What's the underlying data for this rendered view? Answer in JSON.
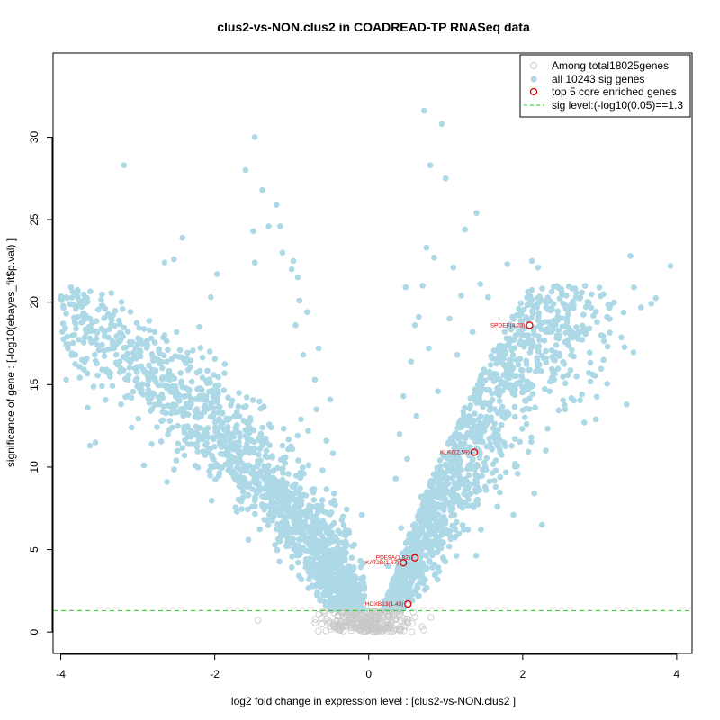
{
  "chart_data": {
    "type": "scatter",
    "title": "clus2-vs-NON.clus2 in COADREAD-TP RNASeq data",
    "xlabel": "log2 fold change in expression level : [clus2-vs-NON.clus2 ]",
    "ylabel": "significance of gene : [-log10(ebayes_fit$p.val) ]",
    "xlim": [
      -4.1,
      4.2
    ],
    "ylim": [
      -1.3,
      35.1
    ],
    "x_ticks": [
      -4,
      -2,
      0,
      2,
      4
    ],
    "x_tick_labels": [
      "-4",
      "-2",
      "0",
      "2",
      "4"
    ],
    "y_ticks": [
      0,
      5,
      10,
      15,
      20,
      25,
      30
    ],
    "y_tick_labels": [
      "0",
      "5",
      "10",
      "15",
      "20",
      "25",
      "30"
    ],
    "sig_level": 1.3,
    "legend": {
      "placement": "top-right",
      "entries": [
        {
          "label": "Among total18025genes",
          "marker": "open-circle",
          "color": "#c8c8c8"
        },
        {
          "label": "all 10243 sig genes",
          "marker": "filled-circle",
          "color": "#add8e6"
        },
        {
          "label": "top 5 core enriched genes",
          "marker": "open-circle",
          "color": "#e00000"
        },
        {
          "label": "sig level:(-log10(0.05)==1.3",
          "marker": "dashed-line",
          "color": "#22cc22"
        }
      ]
    },
    "series": [
      {
        "name": "all 10243 sig genes",
        "color": "#add8e6",
        "points": [
          [
            -3.65,
            13.6
          ],
          [
            -3.62,
            11.3
          ],
          [
            -3.55,
            11.5
          ],
          [
            -3.18,
            28.3
          ],
          [
            -3.08,
            12.4
          ],
          [
            -2.92,
            10.1
          ],
          [
            -2.85,
            13.9
          ],
          [
            -2.82,
            11.4
          ],
          [
            -2.78,
            18.2
          ],
          [
            -2.65,
            22.4
          ],
          [
            -2.65,
            18.0
          ],
          [
            -2.62,
            9.1
          ],
          [
            -2.58,
            15.3
          ],
          [
            -2.55,
            14.9
          ],
          [
            -2.53,
            22.6
          ],
          [
            -2.5,
            10.4
          ],
          [
            -2.45,
            17.1
          ],
          [
            -2.42,
            23.9
          ],
          [
            -2.38,
            14.3
          ],
          [
            -2.22,
            12.0
          ],
          [
            -2.2,
            18.5
          ],
          [
            -2.05,
            20.3
          ],
          [
            -1.97,
            21.7
          ],
          [
            -1.6,
            28.0
          ],
          [
            -1.5,
            24.3
          ],
          [
            -1.48,
            22.4
          ],
          [
            -1.48,
            30.0
          ],
          [
            -1.38,
            26.8
          ],
          [
            -1.3,
            24.6
          ],
          [
            -1.2,
            25.9
          ],
          [
            -1.15,
            24.6
          ],
          [
            -1.12,
            23.0
          ],
          [
            -1.0,
            22.0
          ],
          [
            -0.98,
            22.5
          ],
          [
            -0.95,
            18.6
          ],
          [
            -0.92,
            21.5
          ],
          [
            -0.9,
            20.1
          ],
          [
            -0.88,
            12.9
          ],
          [
            -0.85,
            16.8
          ],
          [
            -0.82,
            7.3
          ],
          [
            -0.8,
            19.4
          ],
          [
            -0.78,
            10.1
          ],
          [
            -0.75,
            5.4
          ],
          [
            -0.7,
            15.3
          ],
          [
            -0.68,
            13.5
          ],
          [
            -0.65,
            17.2
          ],
          [
            -0.6,
            9.8
          ],
          [
            -0.58,
            4.1
          ],
          [
            -0.55,
            11.6
          ],
          [
            -0.52,
            6.2
          ],
          [
            -0.5,
            14.1
          ],
          [
            -0.45,
            8.4
          ],
          [
            -0.4,
            3.2
          ],
          [
            -0.35,
            6.8
          ],
          [
            -0.3,
            2.6
          ],
          [
            -0.25,
            2.0
          ],
          [
            -0.22,
            4.5
          ],
          [
            -0.18,
            1.8
          ],
          [
            0.2,
            1.9
          ],
          [
            0.25,
            4.0
          ],
          [
            0.3,
            2.5
          ],
          [
            0.35,
            9.3
          ],
          [
            0.38,
            3.4
          ],
          [
            0.4,
            12.0
          ],
          [
            0.42,
            6.3
          ],
          [
            0.45,
            14.3
          ],
          [
            0.48,
            20.9
          ],
          [
            0.5,
            10.5
          ],
          [
            0.55,
            16.4
          ],
          [
            0.58,
            5.1
          ],
          [
            0.6,
            18.6
          ],
          [
            0.62,
            13.1
          ],
          [
            0.65,
            19.1
          ],
          [
            0.68,
            8.2
          ],
          [
            0.7,
            21.0
          ],
          [
            0.72,
            31.6
          ],
          [
            0.75,
            23.3
          ],
          [
            0.78,
            17.2
          ],
          [
            0.8,
            28.3
          ],
          [
            0.85,
            22.7
          ],
          [
            0.9,
            14.6
          ],
          [
            0.95,
            30.8
          ],
          [
            1.0,
            27.5
          ],
          [
            1.05,
            19.0
          ],
          [
            1.1,
            22.1
          ],
          [
            1.15,
            16.8
          ],
          [
            1.18,
            11.2
          ],
          [
            1.2,
            20.4
          ],
          [
            1.25,
            24.4
          ],
          [
            1.3,
            9.5
          ],
          [
            1.35,
            18.2
          ],
          [
            1.4,
            25.4
          ],
          [
            1.42,
            15.0
          ],
          [
            1.45,
            21.1
          ],
          [
            1.5,
            12.2
          ],
          [
            1.55,
            20.3
          ],
          [
            1.6,
            16.6
          ],
          [
            1.65,
            8.8
          ],
          [
            1.7,
            14.0
          ],
          [
            1.75,
            11.5
          ],
          [
            1.8,
            22.3
          ],
          [
            1.82,
            13.2
          ],
          [
            1.88,
            7.1
          ],
          [
            1.9,
            10.2
          ],
          [
            1.95,
            19.6
          ],
          [
            2.0,
            15.3
          ],
          [
            2.05,
            12.6
          ],
          [
            2.12,
            22.5
          ],
          [
            2.15,
            8.4
          ],
          [
            2.2,
            22.1
          ],
          [
            2.25,
            6.5
          ],
          [
            2.3,
            11.0
          ],
          [
            2.35,
            14.6
          ],
          [
            2.4,
            19.9
          ],
          [
            2.5,
            20.8
          ],
          [
            2.55,
            13.5
          ],
          [
            2.65,
            14.1
          ],
          [
            2.7,
            15.5
          ],
          [
            2.8,
            12.7
          ],
          [
            2.85,
            20.0
          ],
          [
            2.95,
            12.9
          ],
          [
            3.05,
            16.5
          ],
          [
            3.35,
            13.8
          ],
          [
            3.4,
            22.8
          ],
          [
            3.92,
            22.2
          ]
        ]
      },
      {
        "name": "Among total18025genes",
        "color": "#c8c8c8",
        "points": [
          [
            -0.5,
            0.6
          ],
          [
            -0.45,
            0.3
          ],
          [
            -0.3,
            0.9
          ],
          [
            -0.2,
            0.4
          ],
          [
            -0.1,
            0.2
          ],
          [
            0.0,
            0.1
          ],
          [
            0.1,
            0.3
          ],
          [
            0.2,
            0.5
          ],
          [
            0.35,
            0.8
          ],
          [
            0.5,
            0.6
          ],
          [
            0.6,
            0.9
          ]
        ]
      }
    ],
    "highlighted_genes": [
      {
        "label": "SPDEF(4.23)",
        "x": 2.09,
        "y": 18.6
      },
      {
        "label": "KLK6(2.59)",
        "x": 1.37,
        "y": 10.9
      },
      {
        "label": "PDE9A(1.92)",
        "x": 0.6,
        "y": 4.5
      },
      {
        "label": "KAT2B(1.37)",
        "x": 0.45,
        "y": 4.2
      },
      {
        "label": "HOXB13(1.43)",
        "x": 0.51,
        "y": 1.7
      }
    ]
  }
}
